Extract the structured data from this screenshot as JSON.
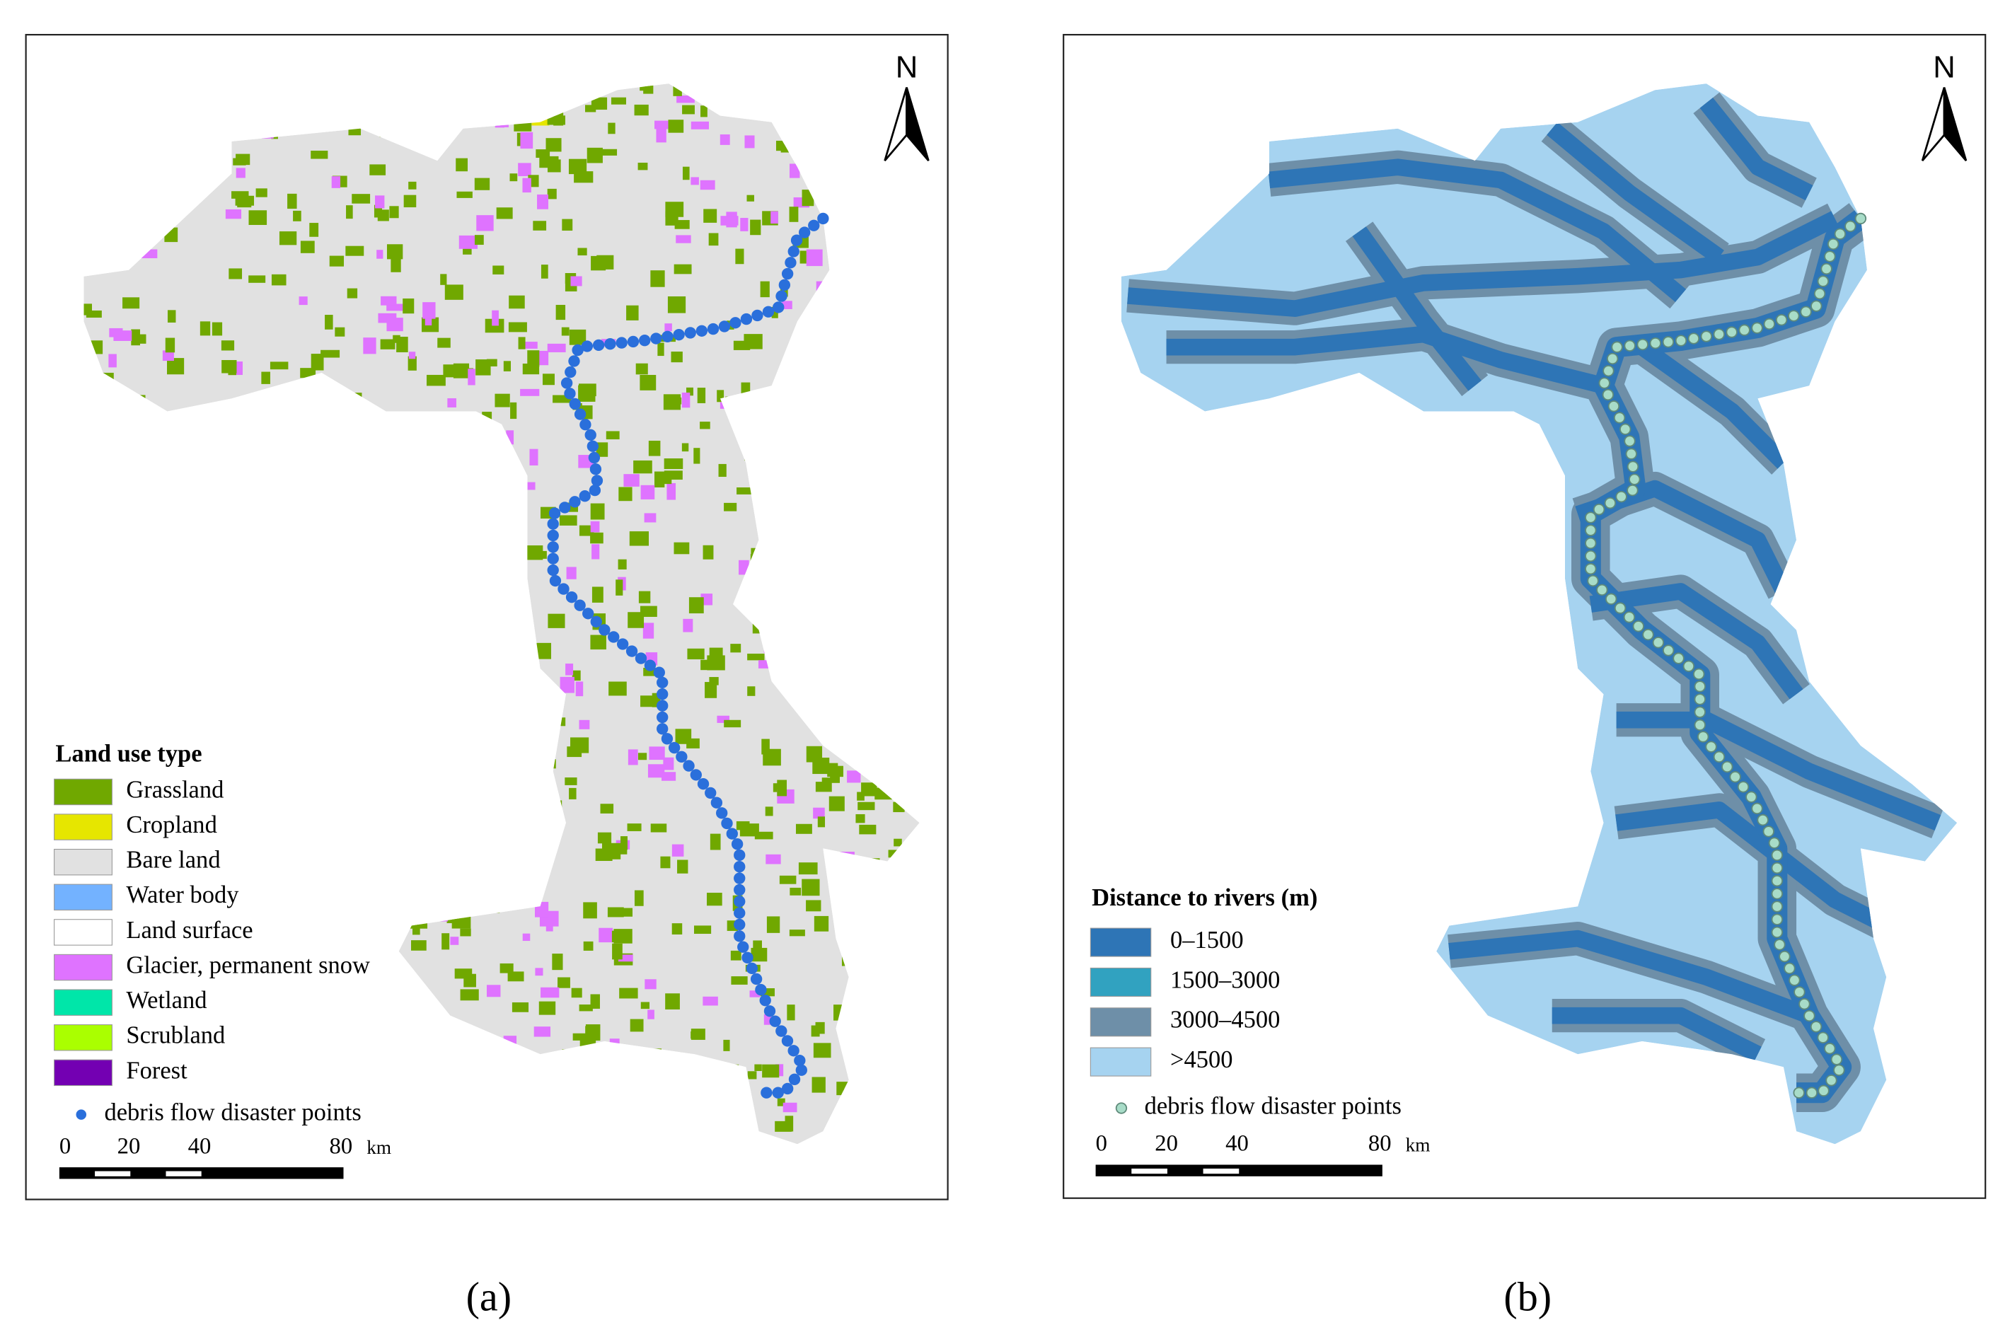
{
  "panels": [
    {
      "caption": "(a)",
      "north": "N",
      "legend": {
        "title": "Land use type",
        "items": [
          {
            "label": "Grassland",
            "color": "#70a800"
          },
          {
            "label": "Cropland",
            "color": "#e6e600"
          },
          {
            "label": "Bare land",
            "color": "#e1e1e1"
          },
          {
            "label": "Water body",
            "color": "#73b2ff"
          },
          {
            "label": "Land surface",
            "color": "#ffffff"
          },
          {
            "label": "Glacier, permanent snow",
            "color": "#df73ff"
          },
          {
            "label": "Wetland",
            "color": "#00e6a9"
          },
          {
            "label": "Scrubland",
            "color": "#aaff00"
          },
          {
            "label": "Forest",
            "color": "#7300b2"
          }
        ]
      },
      "points": {
        "label": "debris flow disaster points",
        "color": "#2a6fdb"
      },
      "scale": {
        "labels": [
          "0",
          "20",
          "40",
          "80"
        ],
        "unit": "km"
      }
    },
    {
      "caption": "(b)",
      "north": "N",
      "legend": {
        "title": "Distance to rivers (m)",
        "items": [
          {
            "label": "0–1500",
            "color": "#2e75b6"
          },
          {
            "label": "1500–3000",
            "color": "#31a2c0"
          },
          {
            "label": "3000–4500",
            "color": "#6e8fa8"
          },
          {
            "label": ">4500",
            "color": "#a6d3f0"
          }
        ]
      },
      "points": {
        "label": "debris flow disaster points",
        "color": "#a8dcc8"
      },
      "scale": {
        "labels": [
          "0",
          "20",
          "40",
          "80"
        ],
        "unit": "km"
      }
    }
  ]
}
